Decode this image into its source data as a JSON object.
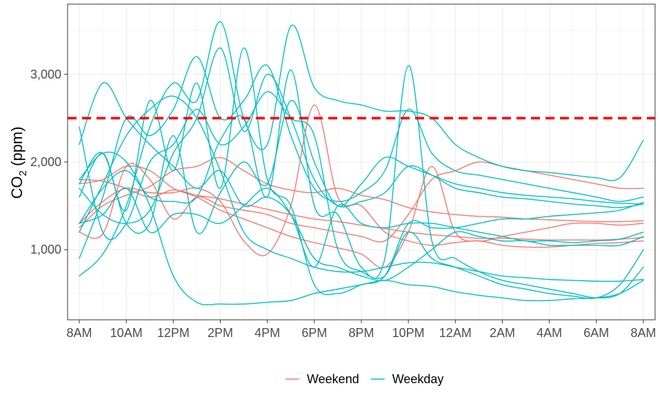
{
  "chart_data": {
    "type": "line",
    "title": "",
    "xlabel": "",
    "ylabel": "CO",
    "ylabel_subscript": "2",
    "ylabel_suffix": " (ppm)",
    "x_unit": "hours since 8AM",
    "xlim": [
      -0.5,
      24.5
    ],
    "ylim": [
      200,
      3800
    ],
    "grid": true,
    "legend_position": "bottom",
    "x_ticks": [
      {
        "value": 0,
        "label": "8AM"
      },
      {
        "value": 2,
        "label": "10AM"
      },
      {
        "value": 4,
        "label": "12PM"
      },
      {
        "value": 6,
        "label": "2PM"
      },
      {
        "value": 8,
        "label": "4PM"
      },
      {
        "value": 10,
        "label": "6PM"
      },
      {
        "value": 12,
        "label": "8PM"
      },
      {
        "value": 14,
        "label": "10PM"
      },
      {
        "value": 16,
        "label": "12AM"
      },
      {
        "value": 18,
        "label": "2AM"
      },
      {
        "value": 20,
        "label": "4AM"
      },
      {
        "value": 22,
        "label": "6AM"
      },
      {
        "value": 24,
        "label": "8AM"
      }
    ],
    "y_ticks": [
      {
        "value": 1000,
        "label": "1,000"
      },
      {
        "value": 2000,
        "label": "2,000"
      },
      {
        "value": 3000,
        "label": "3,000"
      }
    ],
    "threshold": {
      "value": 2500,
      "color": "#ff0000",
      "style": "dashed"
    },
    "colors": {
      "Weekend": "#f8766d",
      "Weekday": "#00bfc4"
    },
    "legend": [
      {
        "name": "Weekend",
        "color": "#f8766d"
      },
      {
        "name": "Weekday",
        "color": "#00bfc4"
      }
    ],
    "series": [
      {
        "group": "Weekend",
        "x": [
          0,
          1,
          2,
          3,
          4,
          5,
          6,
          7,
          8,
          9,
          10,
          11,
          12,
          13,
          14,
          15,
          16,
          17,
          18,
          19,
          20,
          21,
          22,
          23,
          24
        ],
        "y": [
          1800,
          1780,
          1700,
          1600,
          1680,
          1620,
          1580,
          1520,
          1460,
          1400,
          1350,
          1320,
          1280,
          1240,
          1200,
          1170,
          1150,
          1130,
          1130,
          1120,
          1110,
          1110,
          1110,
          1120,
          1140
        ]
      },
      {
        "group": "Weekend",
        "x": [
          0,
          1,
          2,
          3,
          4,
          5,
          6,
          7,
          8,
          9,
          10,
          11,
          12,
          13,
          14,
          15,
          16,
          17,
          18,
          19,
          20,
          21,
          22,
          23,
          24
        ],
        "y": [
          1250,
          1500,
          1620,
          1720,
          1900,
          1950,
          2050,
          1900,
          1750,
          1680,
          1650,
          1700,
          1620,
          1570,
          1480,
          1430,
          1400,
          1380,
          1370,
          1350,
          1340,
          1330,
          1320,
          1320,
          1330
        ]
      },
      {
        "group": "Weekend",
        "x": [
          0,
          1,
          2,
          3,
          4,
          5,
          6,
          7,
          8,
          9,
          10,
          11,
          12,
          13,
          14,
          15,
          16,
          17,
          18,
          19,
          20,
          21,
          22,
          23,
          24
        ],
        "y": [
          1300,
          1550,
          1700,
          1650,
          1650,
          1700,
          1550,
          1100,
          950,
          1500,
          2650,
          1600,
          1500,
          1200,
          1100,
          1050,
          1080,
          1100,
          1050,
          1030,
          1030,
          1050,
          1070,
          1080,
          1100
        ]
      },
      {
        "group": "Weekend",
        "x": [
          0,
          1,
          2,
          3,
          4,
          5,
          6,
          7,
          8,
          9,
          10,
          11,
          12,
          13,
          14,
          15,
          16,
          17,
          18,
          19,
          20,
          21,
          22,
          23,
          24
        ],
        "y": [
          1200,
          1180,
          1950,
          1800,
          1350,
          1600,
          1500,
          1450,
          1400,
          1300,
          1250,
          1200,
          1150,
          1100,
          1400,
          1800,
          1900,
          2000,
          1950,
          1900,
          1850,
          1800,
          1750,
          1700,
          1700
        ]
      },
      {
        "group": "Weekend",
        "x": [
          0,
          1,
          2,
          3,
          4,
          5,
          6,
          7,
          8,
          9,
          10,
          11,
          12,
          13,
          14,
          15,
          16,
          17,
          18,
          19,
          20,
          21,
          22,
          23,
          24
        ],
        "y": [
          1750,
          1800,
          1950,
          1900,
          1700,
          1600,
          1450,
          1350,
          1250,
          1150,
          1080,
          1020,
          950,
          800,
          1200,
          1950,
          1200,
          1100,
          1150,
          1200,
          1250,
          1300,
          1300,
          1280,
          1300
        ]
      },
      {
        "group": "Weekday",
        "x": [
          0,
          1,
          2,
          3,
          4,
          5,
          6,
          7,
          8,
          9,
          10,
          11,
          12,
          13,
          14,
          15,
          16,
          17,
          18,
          19,
          20,
          21,
          22,
          23,
          24
        ],
        "y": [
          2200,
          2900,
          2500,
          2200,
          1950,
          1700,
          1900,
          1500,
          1600,
          1400,
          900,
          800,
          700,
          650,
          800,
          1000,
          1200,
          1150,
          1100,
          1100,
          1050,
          1050,
          1050,
          1050,
          1150
        ]
      },
      {
        "group": "Weekday",
        "x": [
          0,
          1,
          2,
          3,
          4,
          5,
          6,
          7,
          8,
          9,
          10,
          11,
          12,
          13,
          14,
          15,
          16,
          17,
          18,
          19,
          20,
          21,
          22,
          23,
          24
        ],
        "y": [
          1800,
          2100,
          2000,
          1500,
          700,
          400,
          380,
          380,
          400,
          420,
          500,
          550,
          600,
          650,
          600,
          580,
          520,
          480,
          450,
          420,
          420,
          440,
          450,
          500,
          650
        ]
      },
      {
        "group": "Weekday",
        "x": [
          0,
          1,
          2,
          3,
          4,
          5,
          6,
          7,
          8,
          9,
          10,
          11,
          12,
          13,
          14,
          15,
          16,
          17,
          18,
          19,
          20,
          21,
          22,
          23,
          24
        ],
        "y": [
          700,
          950,
          1500,
          2400,
          2900,
          2700,
          3600,
          2500,
          2200,
          3550,
          2850,
          2700,
          2650,
          2580,
          2580,
          2500,
          2200,
          2050,
          1950,
          1900,
          1880,
          1850,
          1820,
          1820,
          2250
        ]
      },
      {
        "group": "Weekday",
        "x": [
          0,
          1,
          2,
          3,
          4,
          5,
          6,
          7,
          8,
          9,
          10,
          11,
          12,
          13,
          14,
          15,
          16,
          17,
          18,
          19,
          20,
          21,
          22,
          23,
          24
        ],
        "y": [
          900,
          1600,
          2500,
          2300,
          2600,
          3200,
          2500,
          2700,
          3100,
          2300,
          1700,
          1550,
          1650,
          1900,
          2600,
          2100,
          1900,
          1850,
          1800,
          1750,
          1700,
          1650,
          1600,
          1550,
          1600
        ]
      },
      {
        "group": "Weekday",
        "x": [
          0,
          1,
          2,
          3,
          4,
          5,
          6,
          7,
          8,
          9,
          10,
          11,
          12,
          13,
          14,
          15,
          16,
          17,
          18,
          19,
          20,
          21,
          22,
          23,
          24
        ],
        "y": [
          1600,
          2100,
          1450,
          2700,
          1900,
          2900,
          1700,
          3300,
          1800,
          1500,
          600,
          500,
          600,
          700,
          1300,
          1250,
          1250,
          1300,
          1350,
          1350,
          1380,
          1400,
          1420,
          1450,
          1540
        ]
      },
      {
        "group": "Weekday",
        "x": [
          0,
          1,
          2,
          3,
          4,
          5,
          6,
          7,
          8,
          9,
          10,
          11,
          12,
          13,
          14,
          15,
          16,
          17,
          18,
          19,
          20,
          21,
          22,
          23,
          24
        ],
        "y": [
          1750,
          2100,
          1300,
          1300,
          2300,
          1200,
          1650,
          2000,
          1750,
          2700,
          2000,
          1500,
          1750,
          2050,
          1950,
          1850,
          1750,
          1700,
          1650,
          1620,
          1600,
          1580,
          1550,
          1530,
          1520
        ]
      },
      {
        "group": "Weekday",
        "x": [
          0,
          1,
          2,
          3,
          4,
          5,
          6,
          7,
          8,
          9,
          10,
          11,
          12,
          13,
          14,
          15,
          16,
          17,
          18,
          19,
          20,
          21,
          22,
          23,
          24
        ],
        "y": [
          1300,
          1700,
          1900,
          1600,
          1550,
          1600,
          2250,
          2500,
          1600,
          3050,
          1500,
          1400,
          800,
          900,
          3100,
          1100,
          900,
          750,
          650,
          600,
          550,
          500,
          450,
          500,
          800
        ]
      },
      {
        "group": "Weekday",
        "x": [
          0,
          1,
          2,
          3,
          4,
          5,
          6,
          7,
          8,
          9,
          10,
          11,
          12,
          13,
          14,
          15,
          16,
          17,
          18,
          19,
          20,
          21,
          22,
          23,
          24
        ],
        "y": [
          2400,
          1200,
          1300,
          2000,
          2200,
          2600,
          2200,
          2400,
          2800,
          2500,
          2300,
          1000,
          750,
          700,
          1200,
          900,
          800,
          700,
          600,
          550,
          500,
          470,
          450,
          600,
          1000
        ]
      },
      {
        "group": "Weekday",
        "x": [
          0,
          1,
          2,
          3,
          4,
          5,
          6,
          7,
          8,
          9,
          10,
          11,
          12,
          13,
          14,
          15,
          16,
          17,
          18,
          19,
          20,
          21,
          22,
          23,
          24
        ],
        "y": [
          1300,
          1400,
          1700,
          1200,
          1400,
          1400,
          1300,
          1500,
          1700,
          1400,
          800,
          1500,
          1300,
          1250,
          1300,
          1300,
          1250,
          1200,
          1150,
          1100,
          1100,
          1080,
          1100,
          1120,
          1200
        ]
      },
      {
        "group": "Weekday",
        "x": [
          0,
          1,
          2,
          3,
          4,
          5,
          6,
          7,
          8,
          9,
          10,
          11,
          12,
          13,
          14,
          15,
          16,
          17,
          18,
          19,
          20,
          21,
          22,
          23,
          24
        ],
        "y": [
          1700,
          1400,
          1300,
          1450,
          2100,
          2500,
          3300,
          2350,
          3000,
          2500,
          1800,
          1500,
          1550,
          1650,
          1950,
          1850,
          1700,
          1650,
          1600,
          1580,
          1550,
          1520,
          1500,
          1480,
          1520
        ]
      },
      {
        "group": "Weekday",
        "x": [
          0,
          1,
          2,
          3,
          4,
          5,
          6,
          7,
          8,
          9,
          10,
          11,
          12,
          13,
          14,
          15,
          16,
          17,
          18,
          19,
          20,
          21,
          22,
          23,
          24
        ],
        "y": [
          1200,
          1750,
          2300,
          2600,
          2750,
          2500,
          1900,
          1200,
          1000,
          900,
          800,
          750,
          750,
          800,
          850,
          850,
          800,
          750,
          700,
          680,
          660,
          650,
          640,
          640,
          660
        ]
      }
    ]
  }
}
